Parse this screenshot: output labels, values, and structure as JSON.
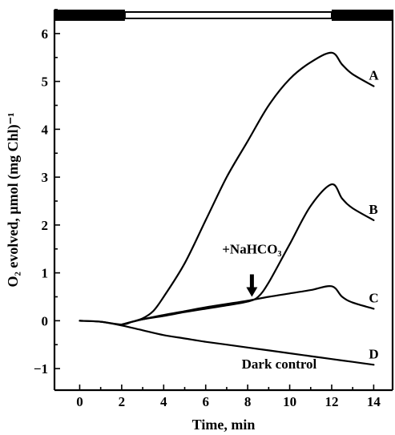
{
  "chart_data": {
    "type": "line",
    "xlabel": "Time, min",
    "ylabel": "O₂ evolved, μmol (mg Chl)⁻¹",
    "xlim": [
      -1.2,
      14.9
    ],
    "ylim": [
      -1.45,
      6.5
    ],
    "x_ticks": [
      "0",
      "2",
      "4",
      "6",
      "8",
      "10",
      "12",
      "14"
    ],
    "y_ticks": [
      "-1",
      "0",
      "1",
      "2",
      "3",
      "4",
      "5",
      "6"
    ],
    "light_period": [
      2,
      12
    ],
    "series": [
      {
        "name": "A",
        "points": [
          [
            0,
            0
          ],
          [
            1,
            -0.02
          ],
          [
            2,
            -0.08
          ],
          [
            2.5,
            -0.02
          ],
          [
            3,
            0.05
          ],
          [
            3.5,
            0.2
          ],
          [
            4,
            0.5
          ],
          [
            5,
            1.2
          ],
          [
            6,
            2.1
          ],
          [
            7,
            3.0
          ],
          [
            8,
            3.75
          ],
          [
            9,
            4.5
          ],
          [
            10,
            5.05
          ],
          [
            11,
            5.4
          ],
          [
            12,
            5.6
          ],
          [
            12.5,
            5.35
          ],
          [
            13,
            5.15
          ],
          [
            14,
            4.9
          ]
        ]
      },
      {
        "name": "B",
        "points": [
          [
            2,
            -0.08
          ],
          [
            3,
            0.03
          ],
          [
            4,
            0.1
          ],
          [
            5,
            0.18
          ],
          [
            6,
            0.25
          ],
          [
            7,
            0.32
          ],
          [
            8,
            0.4
          ],
          [
            8.5,
            0.5
          ],
          [
            9,
            0.8
          ],
          [
            10,
            1.6
          ],
          [
            11,
            2.4
          ],
          [
            12,
            2.85
          ],
          [
            12.5,
            2.55
          ],
          [
            13,
            2.35
          ],
          [
            14,
            2.1
          ]
        ]
      },
      {
        "name": "C",
        "points": [
          [
            2,
            -0.08
          ],
          [
            3,
            0.03
          ],
          [
            4,
            0.12
          ],
          [
            5,
            0.2
          ],
          [
            6,
            0.28
          ],
          [
            7,
            0.35
          ],
          [
            8,
            0.42
          ],
          [
            9,
            0.5
          ],
          [
            10,
            0.57
          ],
          [
            11,
            0.64
          ],
          [
            12,
            0.72
          ],
          [
            12.5,
            0.5
          ],
          [
            13,
            0.38
          ],
          [
            14,
            0.25
          ]
        ]
      },
      {
        "name": "D",
        "points": [
          [
            0,
            0
          ],
          [
            1,
            -0.02
          ],
          [
            2,
            -0.1
          ],
          [
            3,
            -0.2
          ],
          [
            4,
            -0.3
          ],
          [
            5,
            -0.37
          ],
          [
            6,
            -0.44
          ],
          [
            7,
            -0.5
          ],
          [
            8,
            -0.56
          ],
          [
            9,
            -0.62
          ],
          [
            10,
            -0.68
          ],
          [
            11,
            -0.74
          ],
          [
            12,
            -0.8
          ],
          [
            13,
            -0.86
          ],
          [
            14,
            -0.92
          ]
        ]
      }
    ],
    "curve_labels": [
      {
        "text": "A",
        "x": 14,
        "y": 4.9
      },
      {
        "text": "B",
        "x": 14,
        "y": 2.1
      },
      {
        "text": "C",
        "x": 14,
        "y": 0.25
      },
      {
        "text": "D",
        "x": 14,
        "y": -0.92
      }
    ],
    "annotations": [
      {
        "text": "+NaHCO₃",
        "x": 8.2,
        "y": 1.4
      },
      {
        "text": "Dark control",
        "x": 9.5,
        "y": -1.0
      }
    ],
    "arrow_at": {
      "x": 8.2,
      "y": 0.4
    }
  }
}
